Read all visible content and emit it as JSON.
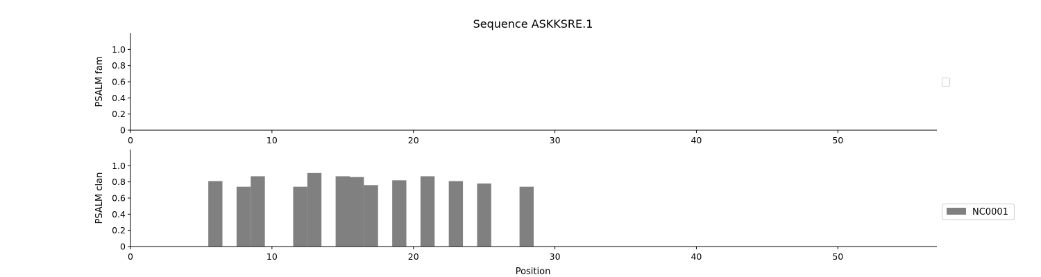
{
  "chart_data": [
    {
      "type": "bar",
      "title": "Sequence ASKKSRE.1",
      "xlabel": "",
      "ylabel": "PSALM fam",
      "xlim": [
        0,
        57
      ],
      "ylim": [
        0,
        1.2
      ],
      "xticks": [
        "0",
        "10",
        "20",
        "30",
        "40",
        "50"
      ],
      "yticks": [
        "0",
        "0.2",
        "0.4",
        "0.6",
        "0.8",
        "1.0"
      ],
      "series": [],
      "legend_location": "right",
      "grid": false
    },
    {
      "type": "bar",
      "title": "",
      "xlabel": "Position",
      "ylabel": "PSALM clan",
      "xlim": [
        0,
        57
      ],
      "ylim": [
        0,
        1.2
      ],
      "xticks": [
        "0",
        "10",
        "20",
        "30",
        "40",
        "50"
      ],
      "yticks": [
        "0",
        "0.2",
        "0.4",
        "0.6",
        "0.8",
        "1.0"
      ],
      "bar_width": 1,
      "series": [
        {
          "name": "NC0001",
          "color": "#808080",
          "x": [
            6,
            8,
            9,
            12,
            13,
            15,
            16,
            17,
            19,
            21,
            23,
            25,
            28
          ],
          "values": [
            0.81,
            0.74,
            0.87,
            0.74,
            0.91,
            0.87,
            0.86,
            0.76,
            0.82,
            0.87,
            0.81,
            0.78,
            0.74
          ]
        }
      ],
      "legend_location": "right",
      "grid": false
    }
  ]
}
